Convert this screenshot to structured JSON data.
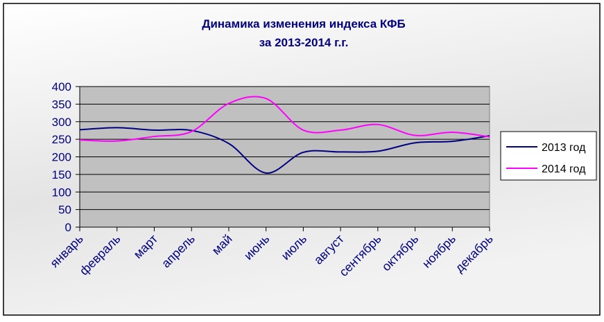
{
  "chart_data": {
    "type": "line",
    "title": "Динамика изменения индекса КФБ",
    "subtitle": "за 2013-2014 г.г.",
    "categories": [
      "январь",
      "февраль",
      "март",
      "апрель",
      "май",
      "июнь",
      "июль",
      "август",
      "сентябрь",
      "октябрь",
      "ноябрь",
      "декабрь"
    ],
    "series": [
      {
        "name": "2013 год",
        "color": "#000080",
        "values": [
          277,
          283,
          276,
          275,
          238,
          154,
          213,
          214,
          216,
          240,
          244,
          260
        ]
      },
      {
        "name": "2014 год",
        "color": "#ff00ff",
        "values": [
          248,
          245,
          258,
          272,
          352,
          366,
          276,
          276,
          292,
          261,
          270,
          257
        ]
      }
    ],
    "ylim": [
      0,
      400
    ],
    "yticks": [
      0,
      50,
      100,
      150,
      200,
      250,
      300,
      350,
      400
    ],
    "grid": true,
    "smooth": true,
    "legend": "right"
  }
}
